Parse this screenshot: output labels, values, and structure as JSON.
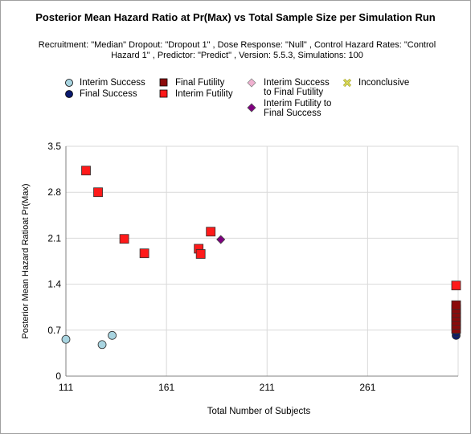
{
  "chart_data": {
    "type": "scatter",
    "title": "Posterior Mean Hazard Ratio at Pr(Max) vs Total Sample Size per Simulation Run",
    "subtitle": "Recruitment: \"Median\" Dropout: \"Dropout 1\" , Dose Response: \"Null\" , Control Hazard Rates: \"Control Hazard 1\" , Predictor: \"Predict\" , Version: 5.5.3, Simulations: 100",
    "xlabel": "Total Number of Subjects",
    "ylabel": "Posterior Mean Hazard Ratioat Pr(Max)",
    "xlim": [
      111,
      306
    ],
    "ylim": [
      0,
      3.5
    ],
    "x_ticks": [
      "111",
      "161",
      "211",
      "261"
    ],
    "y_ticks": [
      "0",
      "0.7",
      "1.4",
      "2.1",
      "2.8",
      "3.5"
    ],
    "grid": true,
    "legend_position": "top",
    "series": [
      {
        "name": "Interim Success",
        "color": "#a8d4e0",
        "marker": "circle",
        "points": [
          [
            111,
            0.56
          ],
          [
            129,
            0.48
          ],
          [
            134,
            0.62
          ]
        ]
      },
      {
        "name": "Final Success",
        "color": "#0a1a6e",
        "marker": "circle",
        "points": [
          [
            305,
            0.62
          ],
          [
            305,
            0.66
          ],
          [
            305,
            0.7
          ]
        ]
      },
      {
        "name": "Final Futility",
        "color": "#8b0a0a",
        "marker": "square",
        "points": [
          [
            305,
            0.72
          ],
          [
            305,
            0.78
          ],
          [
            305,
            0.84
          ],
          [
            305,
            0.9
          ],
          [
            305,
            0.96
          ],
          [
            305,
            1.02
          ],
          [
            305,
            1.08
          ]
        ]
      },
      {
        "name": "Interim Futility",
        "color": "#ff1a1a",
        "marker": "square",
        "points": [
          [
            121,
            3.13
          ],
          [
            127,
            2.8
          ],
          [
            140,
            2.09
          ],
          [
            150,
            1.87
          ],
          [
            177,
            1.94
          ],
          [
            178,
            1.86
          ],
          [
            183,
            2.2
          ],
          [
            305,
            1.38
          ]
        ]
      },
      {
        "name": "Interim Success to Final Futility",
        "color": "#f0b0d0",
        "marker": "diamond",
        "points": []
      },
      {
        "name": "Interim Futility to Final Success",
        "color": "#800080",
        "marker": "diamond",
        "points": [
          [
            188,
            2.08
          ]
        ]
      },
      {
        "name": "Inconclusive",
        "color": "#c8c832",
        "marker": "x",
        "points": []
      }
    ]
  },
  "legend": {
    "interim_success": "Interim Success",
    "final_success": "Final Success",
    "final_futility": "Final Futility",
    "interim_futility": "Interim Futility",
    "is_to_ff_line1": "Interim Success",
    "is_to_ff_line2": "to Final Futility",
    "if_to_fs_line1": "Interim Futility to",
    "if_to_fs_line2": "Final Success",
    "inconclusive": "Inconclusive"
  }
}
